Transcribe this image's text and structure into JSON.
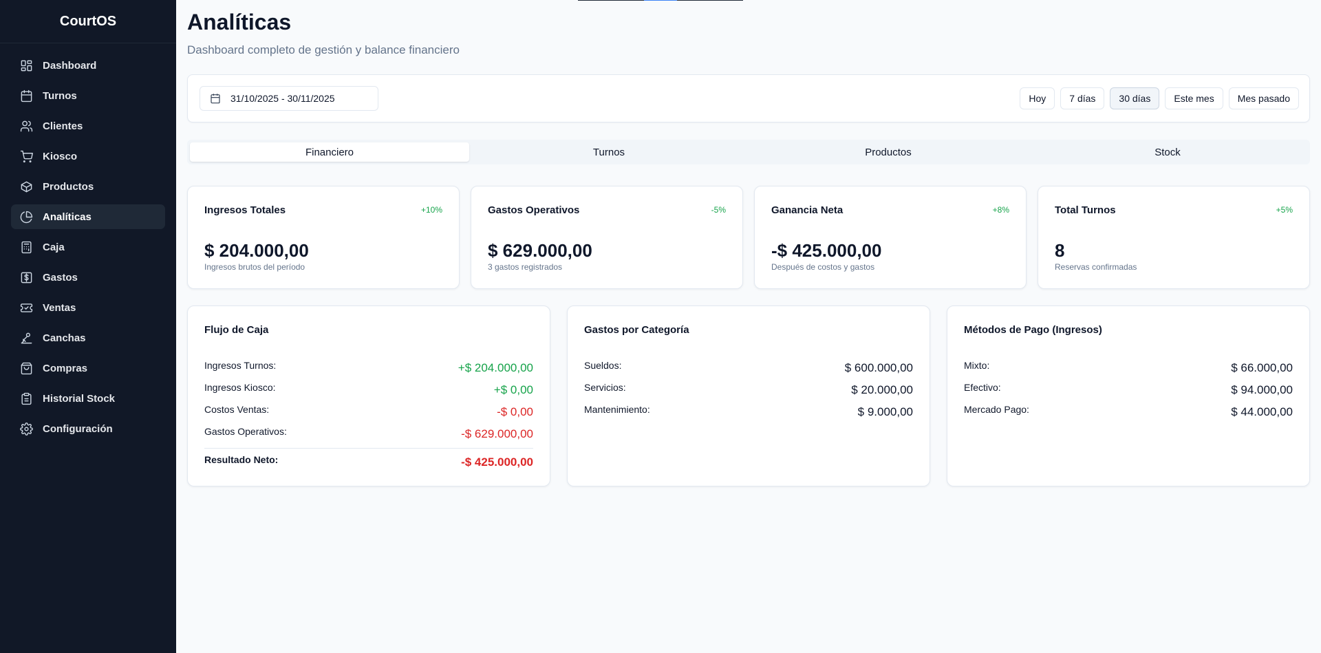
{
  "app": {
    "name": "CourtOS"
  },
  "sidebar": {
    "items": [
      {
        "label": "Dashboard",
        "icon": "dashboard-icon"
      },
      {
        "label": "Turnos",
        "icon": "calendar-icon"
      },
      {
        "label": "Clientes",
        "icon": "users-icon"
      },
      {
        "label": "Kiosco",
        "icon": "cart-icon"
      },
      {
        "label": "Productos",
        "icon": "package-icon"
      },
      {
        "label": "Analíticas",
        "icon": "pie-chart-icon",
        "active": true
      },
      {
        "label": "Caja",
        "icon": "calculator-icon"
      },
      {
        "label": "Gastos",
        "icon": "dollar-icon"
      },
      {
        "label": "Ventas",
        "icon": "ticket-icon"
      },
      {
        "label": "Canchas",
        "icon": "court-icon"
      },
      {
        "label": "Compras",
        "icon": "shopping-bag-icon"
      },
      {
        "label": "Historial Stock",
        "icon": "clipboard-icon"
      },
      {
        "label": "Configuración",
        "icon": "gear-icon"
      }
    ]
  },
  "header": {
    "title": "Analíticas",
    "subtitle": "Dashboard completo de gestión y balance financiero"
  },
  "filters": {
    "date_range": "31/10/2025 - 30/11/2025",
    "presets": [
      "Hoy",
      "7 días",
      "30 días",
      "Este mes",
      "Mes pasado"
    ],
    "active_preset": "30 días"
  },
  "tabs": [
    "Financiero",
    "Turnos",
    "Productos",
    "Stock"
  ],
  "active_tab": "Financiero",
  "kpis": [
    {
      "title": "Ingresos Totales",
      "change": "+10%",
      "value": "$ 204.000,00",
      "sub": "Ingresos brutos del período"
    },
    {
      "title": "Gastos Operativos",
      "change": "-5%",
      "value": "$ 629.000,00",
      "sub": "3 gastos registrados"
    },
    {
      "title": "Ganancia Neta",
      "change": "+8%",
      "value": "-$ 425.000,00",
      "sub": "Después de costos y gastos"
    },
    {
      "title": "Total Turnos",
      "change": "+5%",
      "value": "8",
      "sub": "Reservas confirmadas"
    }
  ],
  "cash_flow": {
    "title": "Flujo de Caja",
    "rows": [
      {
        "label": "Ingresos Turnos:",
        "value": "+$ 204.000,00"
      },
      {
        "label": "Ingresos Kiosco:",
        "value": "+$ 0,00"
      },
      {
        "label": "Costos Ventas:",
        "value": "-$ 0,00"
      },
      {
        "label": "Gastos Operativos:",
        "value": "-$ 629.000,00"
      }
    ],
    "total": {
      "label": "Resultado Neto:",
      "value": "-$ 425.000,00"
    }
  },
  "expenses_by_category": {
    "title": "Gastos por Categoría",
    "rows": [
      {
        "label": "Sueldos:",
        "value": "$ 600.000,00"
      },
      {
        "label": "Servicios:",
        "value": "$ 20.000,00"
      },
      {
        "label": "Mantenimiento:",
        "value": "$ 9.000,00"
      }
    ]
  },
  "payment_methods": {
    "title": "Métodos de Pago (Ingresos)",
    "rows": [
      {
        "label": "Mixto:",
        "value": "$ 66.000,00"
      },
      {
        "label": "Efectivo:",
        "value": "$ 94.000,00"
      },
      {
        "label": "Mercado Pago:",
        "value": "$ 44.000,00"
      }
    ]
  },
  "colors": {
    "sidebar_bg": "#111827",
    "positive": "#16a34a",
    "negative": "#dc2626",
    "accent": "#3b82f6"
  }
}
